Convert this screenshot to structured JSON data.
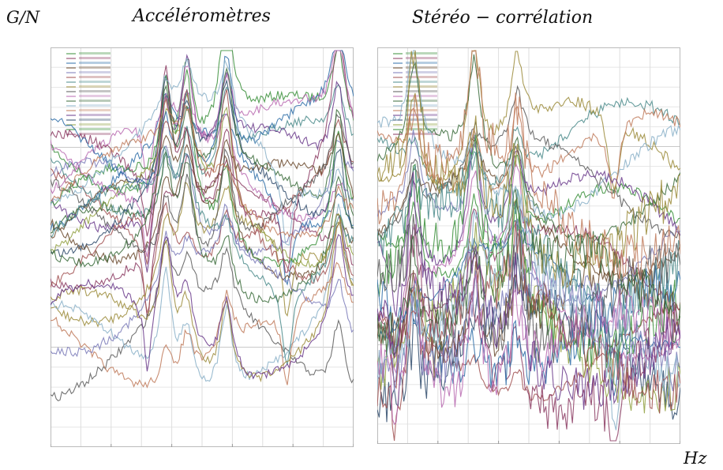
{
  "labels": {
    "yaxis": "G/N",
    "xaxis": "Hz"
  },
  "chart_data": [
    {
      "type": "line",
      "title": "Accéléromètres",
      "ylabel": "G/N",
      "xlabel": "",
      "scale": "log-log",
      "grid": true,
      "legend": "top-left",
      "x": [
        0,
        4,
        8,
        12,
        16,
        20,
        24,
        28,
        32,
        36,
        40,
        44,
        48,
        52,
        56,
        60,
        64,
        68,
        72,
        76,
        80,
        84,
        88,
        92,
        96,
        100
      ],
      "series_count": 30,
      "peak_frequencies": [
        38,
        45,
        58,
        95
      ],
      "ylim": [
        0,
        10
      ]
    },
    {
      "type": "line",
      "title": "Stéréo – corrélation",
      "ylabel": "",
      "xlabel": "Hz",
      "scale": "log-log",
      "grid": true,
      "legend": "top-left",
      "x": [
        0,
        4,
        8,
        12,
        16,
        20,
        24,
        28,
        32,
        36,
        40,
        44,
        48,
        52,
        56,
        60,
        64,
        68,
        72,
        76,
        80,
        84,
        88,
        92,
        96,
        100
      ],
      "series_count": 30,
      "peak_frequencies": [
        12,
        32,
        46
      ],
      "ylim": [
        0,
        10
      ]
    }
  ],
  "titles": {
    "left": "Accéléromètres",
    "right": "Stéréo − corrélation"
  }
}
